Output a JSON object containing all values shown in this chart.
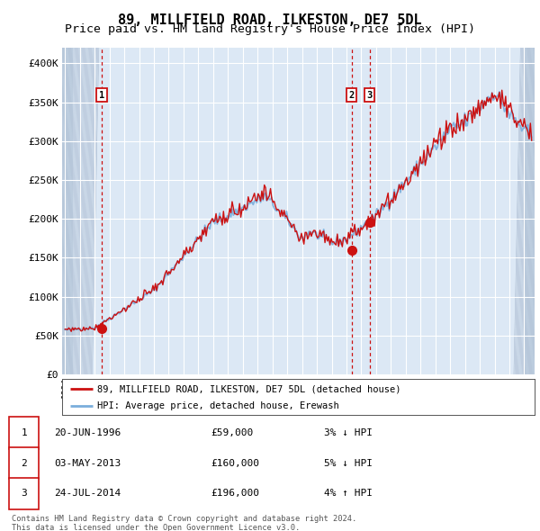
{
  "title1": "89, MILLFIELD ROAD, ILKESTON, DE7 5DL",
  "title2": "Price paid vs. HM Land Registry's House Price Index (HPI)",
  "legend_line1": "89, MILLFIELD ROAD, ILKESTON, DE7 5DL (detached house)",
  "legend_line2": "HPI: Average price, detached house, Erewash",
  "hpi_color": "#7aaedc",
  "price_color": "#cc1111",
  "dot_color": "#cc1111",
  "vline_color": "#cc1111",
  "plot_bg": "#dce8f5",
  "grid_color": "#ffffff",
  "transactions": [
    {
      "label": "1",
      "date": "20-JUN-1996",
      "year": 1996.47,
      "price": 59000,
      "hpi_rel": -0.03,
      "direction": "↓"
    },
    {
      "label": "2",
      "date": "03-MAY-2013",
      "year": 2013.34,
      "price": 160000,
      "hpi_rel": -0.05,
      "direction": "↓"
    },
    {
      "label": "3",
      "date": "24-JUL-2014",
      "year": 2014.56,
      "price": 196000,
      "hpi_rel": 0.04,
      "direction": "↑"
    }
  ],
  "footnote1": "Contains HM Land Registry data © Crown copyright and database right 2024.",
  "footnote2": "This data is licensed under the Open Government Licence v3.0.",
  "ylim": [
    0,
    420000
  ],
  "yticks": [
    0,
    50000,
    100000,
    150000,
    200000,
    250000,
    300000,
    350000,
    400000
  ],
  "ytick_labels": [
    "£0",
    "£50K",
    "£100K",
    "£150K",
    "£200K",
    "£250K",
    "£300K",
    "£350K",
    "£400K"
  ],
  "xmin": 1993.8,
  "xmax": 2025.7,
  "title_fontsize": 11,
  "subtitle_fontsize": 9.5
}
